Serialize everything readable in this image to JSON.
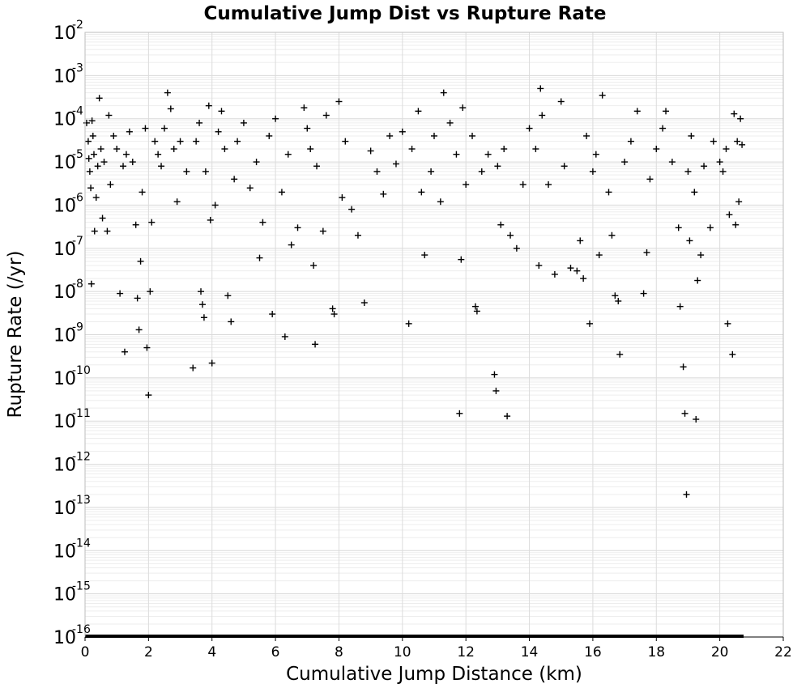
{
  "chart_data": {
    "type": "scatter",
    "title": "Cumulative Jump Dist vs Rupture Rate",
    "xlabel": "Cumulative Jump Distance (km)",
    "ylabel": "Rupture Rate (/yr)",
    "xlim": [
      0,
      22
    ],
    "ylim": [
      1e-16,
      0.01
    ],
    "yscale": "log",
    "grid": true,
    "x_ticks": [
      "0",
      "2",
      "4",
      "6",
      "8",
      "10",
      "12",
      "14",
      "16",
      "18",
      "20",
      "22"
    ],
    "y_ticks": [
      {
        "base": "10",
        "exp": "-2"
      },
      {
        "base": "10",
        "exp": "-3"
      },
      {
        "base": "10",
        "exp": "-4"
      },
      {
        "base": "10",
        "exp": "-5"
      },
      {
        "base": "10",
        "exp": "-6"
      },
      {
        "base": "10",
        "exp": "-7"
      },
      {
        "base": "10",
        "exp": "-8"
      },
      {
        "base": "10",
        "exp": "-9"
      },
      {
        "base": "10",
        "exp": "-10"
      },
      {
        "base": "10",
        "exp": "-11"
      },
      {
        "base": "10",
        "exp": "-12"
      },
      {
        "base": "10",
        "exp": "-13"
      },
      {
        "base": "10",
        "exp": "-14"
      },
      {
        "base": "10",
        "exp": "-15"
      },
      {
        "base": "10",
        "exp": "-16"
      }
    ],
    "marker": "+",
    "marker_color": "#000000",
    "series": [
      {
        "points": [
          [
            0.05,
            8e-05
          ],
          [
            0.1,
            3e-05
          ],
          [
            0.12,
            1.2e-05
          ],
          [
            0.15,
            6e-06
          ],
          [
            0.18,
            2.5e-06
          ],
          [
            0.2,
            1.5e-08
          ],
          [
            0.22,
            9e-05
          ],
          [
            0.25,
            4e-05
          ],
          [
            0.28,
            1.5e-05
          ],
          [
            0.3,
            2.5e-07
          ],
          [
            0.35,
            1.5e-06
          ],
          [
            0.4,
            8e-06
          ],
          [
            0.45,
            0.0003
          ],
          [
            0.5,
            2e-05
          ],
          [
            0.55,
            5e-07
          ],
          [
            0.6,
            1e-05
          ],
          [
            0.7,
            2.5e-07
          ],
          [
            0.75,
            0.00012
          ],
          [
            0.8,
            3e-06
          ],
          [
            0.9,
            4e-05
          ],
          [
            1.0,
            2e-05
          ],
          [
            1.1,
            9e-09
          ],
          [
            1.2,
            8e-06
          ],
          [
            1.25,
            4e-10
          ],
          [
            1.3,
            1.5e-05
          ],
          [
            1.4,
            5e-05
          ],
          [
            1.5,
            1e-05
          ],
          [
            1.6,
            3.5e-07
          ],
          [
            1.65,
            7e-09
          ],
          [
            1.7,
            1.3e-09
          ],
          [
            1.75,
            5e-08
          ],
          [
            1.8,
            2e-06
          ],
          [
            1.9,
            6e-05
          ],
          [
            1.95,
            5e-10
          ],
          [
            2.0,
            4e-11
          ],
          [
            2.05,
            1e-08
          ],
          [
            2.1,
            4e-07
          ],
          [
            2.2,
            3e-05
          ],
          [
            2.3,
            1.5e-05
          ],
          [
            2.4,
            8e-06
          ],
          [
            2.5,
            6e-05
          ],
          [
            2.6,
            0.0004
          ],
          [
            2.7,
            0.00017
          ],
          [
            2.8,
            2e-05
          ],
          [
            2.9,
            1.2e-06
          ],
          [
            3.0,
            3e-05
          ],
          [
            3.2,
            6e-06
          ],
          [
            3.4,
            1.7e-10
          ],
          [
            3.5,
            3e-05
          ],
          [
            3.6,
            8e-05
          ],
          [
            3.65,
            1e-08
          ],
          [
            3.7,
            5e-09
          ],
          [
            3.75,
            2.5e-09
          ],
          [
            3.8,
            6e-06
          ],
          [
            3.9,
            0.0002
          ],
          [
            3.95,
            4.5e-07
          ],
          [
            4.0,
            2.2e-10
          ],
          [
            4.1,
            1e-06
          ],
          [
            4.2,
            5e-05
          ],
          [
            4.3,
            0.00015
          ],
          [
            4.4,
            2e-05
          ],
          [
            4.5,
            8e-09
          ],
          [
            4.6,
            2e-09
          ],
          [
            4.7,
            4e-06
          ],
          [
            4.8,
            3e-05
          ],
          [
            5.0,
            8e-05
          ],
          [
            5.2,
            2.5e-06
          ],
          [
            5.4,
            1e-05
          ],
          [
            5.5,
            6e-08
          ],
          [
            5.6,
            4e-07
          ],
          [
            5.8,
            4e-05
          ],
          [
            5.9,
            3e-09
          ],
          [
            6.0,
            0.0001
          ],
          [
            6.2,
            2e-06
          ],
          [
            6.3,
            9e-10
          ],
          [
            6.4,
            1.5e-05
          ],
          [
            6.5,
            1.2e-07
          ],
          [
            6.7,
            3e-07
          ],
          [
            6.9,
            0.00018
          ],
          [
            7.0,
            6e-05
          ],
          [
            7.1,
            2e-05
          ],
          [
            7.2,
            4e-08
          ],
          [
            7.25,
            6e-10
          ],
          [
            7.3,
            8e-06
          ],
          [
            7.5,
            2.5e-07
          ],
          [
            7.6,
            0.00012
          ],
          [
            7.8,
            4e-09
          ],
          [
            7.85,
            3e-09
          ],
          [
            8.0,
            0.00025
          ],
          [
            8.1,
            1.5e-06
          ],
          [
            8.2,
            3e-05
          ],
          [
            8.4,
            8e-07
          ],
          [
            8.6,
            2e-07
          ],
          [
            8.8,
            5.5e-09
          ],
          [
            9.0,
            1.8e-05
          ],
          [
            9.2,
            6e-06
          ],
          [
            9.4,
            1.8e-06
          ],
          [
            9.6,
            4e-05
          ],
          [
            9.8,
            9e-06
          ],
          [
            10.0,
            5e-05
          ],
          [
            10.2,
            1.8e-09
          ],
          [
            10.3,
            2e-05
          ],
          [
            10.5,
            0.00015
          ],
          [
            10.6,
            2e-06
          ],
          [
            10.7,
            7e-08
          ],
          [
            10.9,
            6e-06
          ],
          [
            11.0,
            4e-05
          ],
          [
            11.2,
            1.2e-06
          ],
          [
            11.3,
            0.0004
          ],
          [
            11.5,
            8e-05
          ],
          [
            11.7,
            1.5e-05
          ],
          [
            11.8,
            1.5e-11
          ],
          [
            11.85,
            5.5e-08
          ],
          [
            11.9,
            0.00018
          ],
          [
            12.0,
            3e-06
          ],
          [
            12.2,
            4e-05
          ],
          [
            12.3,
            4.5e-09
          ],
          [
            12.35,
            3.5e-09
          ],
          [
            12.5,
            6e-06
          ],
          [
            12.7,
            1.5e-05
          ],
          [
            12.9,
            1.2e-10
          ],
          [
            12.95,
            5e-11
          ],
          [
            13.0,
            8e-06
          ],
          [
            13.1,
            3.5e-07
          ],
          [
            13.2,
            2e-05
          ],
          [
            13.3,
            1.3e-11
          ],
          [
            13.4,
            2e-07
          ],
          [
            13.6,
            1e-07
          ],
          [
            13.8,
            3e-06
          ],
          [
            14.0,
            6e-05
          ],
          [
            14.2,
            2e-05
          ],
          [
            14.3,
            4e-08
          ],
          [
            14.35,
            0.0005
          ],
          [
            14.4,
            0.00012
          ],
          [
            14.6,
            3e-06
          ],
          [
            14.8,
            2.5e-08
          ],
          [
            15.0,
            0.00025
          ],
          [
            15.1,
            8e-06
          ],
          [
            15.3,
            3.5e-08
          ],
          [
            15.5,
            3e-08
          ],
          [
            15.6,
            1.5e-07
          ],
          [
            15.7,
            2e-08
          ],
          [
            15.8,
            4e-05
          ],
          [
            15.9,
            1.8e-09
          ],
          [
            16.0,
            6e-06
          ],
          [
            16.1,
            1.5e-05
          ],
          [
            16.2,
            7e-08
          ],
          [
            16.3,
            0.00035
          ],
          [
            16.5,
            2e-06
          ],
          [
            16.6,
            2e-07
          ],
          [
            16.7,
            8e-09
          ],
          [
            16.8,
            6e-09
          ],
          [
            16.85,
            3.5e-10
          ],
          [
            17.0,
            1e-05
          ],
          [
            17.2,
            3e-05
          ],
          [
            17.4,
            0.00015
          ],
          [
            17.6,
            9e-09
          ],
          [
            17.7,
            8e-08
          ],
          [
            17.8,
            4e-06
          ],
          [
            18.0,
            2e-05
          ],
          [
            18.2,
            6e-05
          ],
          [
            18.3,
            0.00015
          ],
          [
            18.5,
            1e-05
          ],
          [
            18.7,
            3e-07
          ],
          [
            18.75,
            4.5e-09
          ],
          [
            18.85,
            1.8e-10
          ],
          [
            18.9,
            1.5e-11
          ],
          [
            18.95,
            2e-13
          ],
          [
            19.0,
            6e-06
          ],
          [
            19.05,
            1.5e-07
          ],
          [
            19.1,
            4e-05
          ],
          [
            19.2,
            2e-06
          ],
          [
            19.25,
            1.1e-11
          ],
          [
            19.3,
            1.8e-08
          ],
          [
            19.4,
            7e-08
          ],
          [
            19.5,
            8e-06
          ],
          [
            19.7,
            3e-07
          ],
          [
            19.8,
            3e-05
          ],
          [
            20.0,
            1e-05
          ],
          [
            20.1,
            6e-06
          ],
          [
            20.2,
            2e-05
          ],
          [
            20.25,
            1.8e-09
          ],
          [
            20.3,
            6e-07
          ],
          [
            20.4,
            3.5e-10
          ],
          [
            20.45,
            0.00013
          ],
          [
            20.5,
            3.5e-07
          ],
          [
            20.55,
            3e-05
          ],
          [
            20.6,
            1.2e-06
          ],
          [
            20.65,
            0.0001
          ],
          [
            20.7,
            2.5e-05
          ]
        ]
      }
    ]
  }
}
